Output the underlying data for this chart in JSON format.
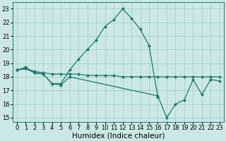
{
  "xlabel": "Humidex (Indice chaleur)",
  "bg_color": "#cce8e6",
  "grid_color": "#99ccca",
  "line_color": "#1a7a6a",
  "xlim": [
    -0.5,
    23.5
  ],
  "ylim": [
    14.7,
    23.5
  ],
  "yticks": [
    15,
    16,
    17,
    18,
    19,
    20,
    21,
    22,
    23
  ],
  "xticks": [
    0,
    1,
    2,
    3,
    4,
    5,
    6,
    7,
    8,
    9,
    10,
    11,
    12,
    13,
    14,
    15,
    16,
    17,
    18,
    19,
    20,
    21,
    22,
    23
  ],
  "line1_x": [
    0,
    1,
    2,
    3,
    4,
    5,
    6,
    7,
    8,
    9,
    10,
    11,
    12,
    13,
    14,
    15,
    16
  ],
  "line1_y": [
    18.5,
    18.7,
    18.3,
    18.2,
    17.5,
    17.5,
    18.5,
    19.3,
    20.0,
    20.7,
    21.7,
    22.2,
    23.0,
    22.3,
    21.5,
    20.3,
    16.5
  ],
  "line2_x": [
    0,
    1,
    2,
    3,
    4,
    5,
    6,
    7,
    8,
    9,
    10,
    11,
    12,
    13,
    14,
    15,
    16,
    17,
    18,
    19,
    20,
    21,
    22,
    23
  ],
  "line2_y": [
    18.5,
    18.6,
    18.4,
    18.3,
    18.2,
    18.2,
    18.2,
    18.2,
    18.1,
    18.1,
    18.1,
    18.1,
    18.0,
    18.0,
    18.0,
    18.0,
    18.0,
    18.0,
    18.0,
    18.0,
    18.0,
    18.0,
    18.0,
    18.0
  ],
  "line3_x": [
    0,
    1,
    2,
    3,
    4,
    5,
    6,
    16,
    17,
    18,
    19,
    20,
    21,
    22,
    23
  ],
  "line3_y": [
    18.5,
    18.6,
    18.3,
    18.2,
    17.5,
    17.4,
    18.0,
    16.6,
    15.0,
    16.0,
    16.3,
    17.8,
    16.7,
    17.8,
    17.7
  ],
  "tick_fontsize": 6,
  "label_fontsize": 7.5,
  "marker_size": 2.5,
  "line_width": 0.9
}
